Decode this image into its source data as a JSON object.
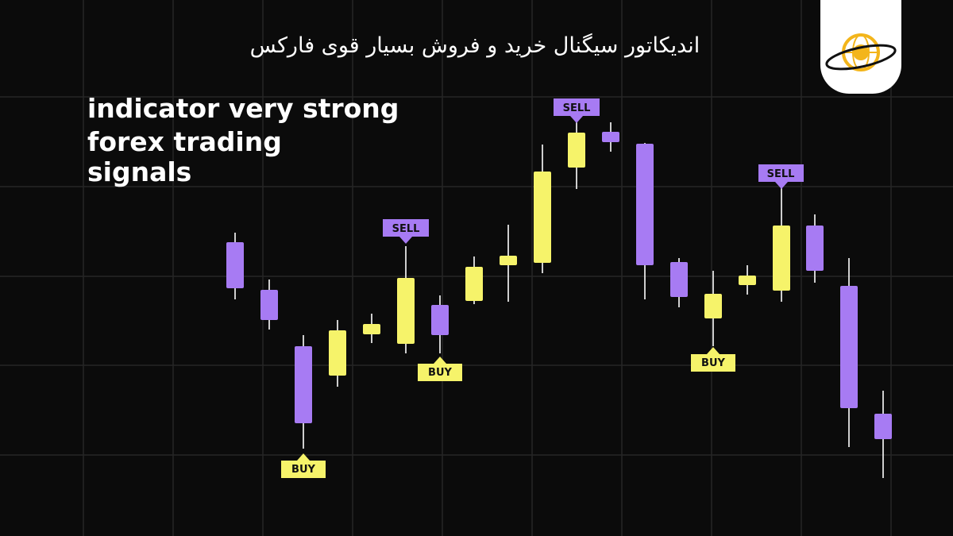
{
  "header": {
    "title": "اندیکاتور سیگنال خرید و فروش بسیار قوی فارکس"
  },
  "headline": {
    "lines": [
      "indicator very strong",
      "forex trading",
      "signals"
    ]
  },
  "signals": [
    {
      "label": "BUY"
    },
    {
      "label": "SELL"
    },
    {
      "label": "BUY"
    },
    {
      "label": "SELL"
    },
    {
      "label": "BUY"
    },
    {
      "label": "SELL"
    }
  ]
}
